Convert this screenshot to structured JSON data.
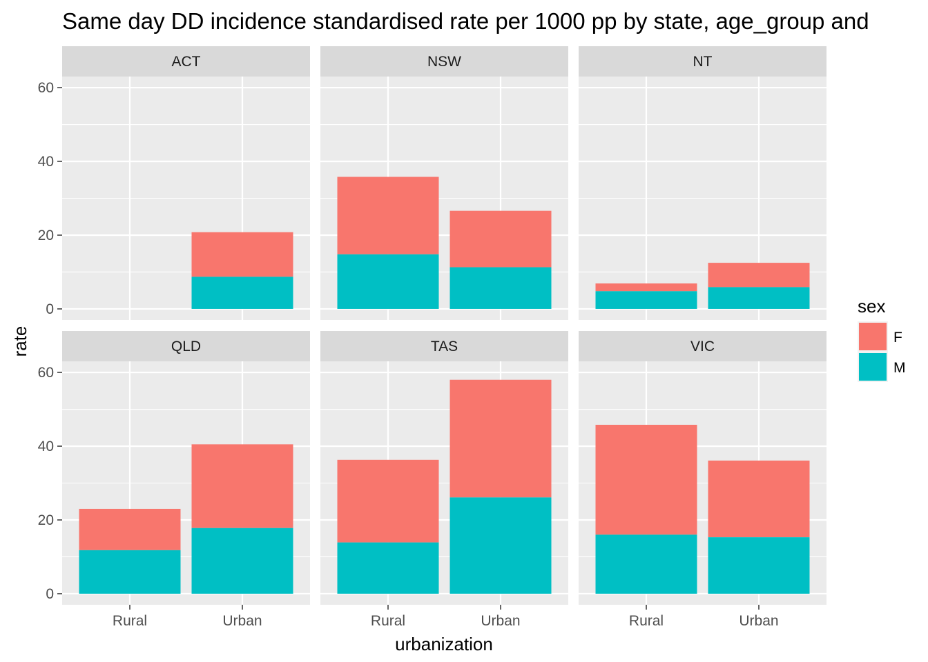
{
  "chart_data": {
    "type": "bar",
    "stacked": true,
    "title": "Same day DD incidence standardised rate per 1000 pp by state, age_group and",
    "xlabel": "urbanization",
    "ylabel": "rate",
    "ylim": [
      0,
      60
    ],
    "yticks": [
      0,
      20,
      40,
      60
    ],
    "categories": [
      "Rural",
      "Urban"
    ],
    "facets": [
      {
        "name": "ACT",
        "series": {
          "M": [
            null,
            8.7
          ],
          "F": [
            null,
            12.1
          ]
        }
      },
      {
        "name": "NSW",
        "series": {
          "M": [
            14.8,
            11.3
          ],
          "F": [
            21.0,
            15.3
          ]
        }
      },
      {
        "name": "NT",
        "series": {
          "M": [
            4.8,
            5.9
          ],
          "F": [
            2.1,
            6.6
          ]
        }
      },
      {
        "name": "QLD",
        "series": {
          "M": [
            11.8,
            17.8
          ],
          "F": [
            11.2,
            22.7
          ]
        }
      },
      {
        "name": "TAS",
        "series": {
          "M": [
            13.9,
            26.1
          ],
          "F": [
            22.4,
            31.9
          ]
        }
      },
      {
        "name": "VIC",
        "series": {
          "M": [
            16.0,
            15.3
          ],
          "F": [
            29.8,
            20.8
          ]
        }
      }
    ],
    "legend": {
      "title": "sex",
      "position": "right",
      "entries": [
        {
          "name": "F",
          "color": "#F8766D"
        },
        {
          "name": "M",
          "color": "#00BFC4"
        }
      ]
    },
    "grid": true,
    "layout": {
      "rows": 2,
      "cols": 3
    }
  }
}
